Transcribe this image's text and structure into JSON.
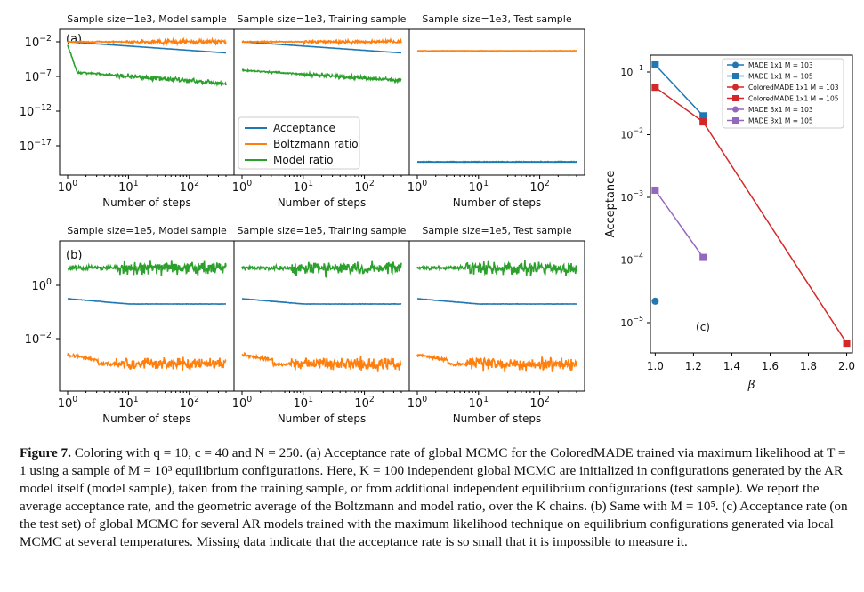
{
  "panels": {
    "top_titles": [
      "Sample size=1e3, Model sample",
      "Sample size=1e3, Training sample",
      "Sample size=1e3, Test sample"
    ],
    "bottom_titles": [
      "Sample size=1e5, Model sample",
      "Sample size=1e5, Training sample",
      "Sample size=1e5, Test sample"
    ],
    "xlabel": "Number of steps",
    "label_a": "(a)",
    "label_b": "(b)",
    "label_c": "(c)"
  },
  "colors": {
    "acceptance": "#1f77b4",
    "boltzmann": "#ff7f0e",
    "model": "#2ca02c",
    "made1": "#1f77b4",
    "colored": "#d62728",
    "made3": "#9467bd"
  },
  "chart_data": [
    {
      "type": "line",
      "title": "Sample size=1e3 (Model / Training / Test sample)",
      "xscale": "log",
      "yscale": "log",
      "xlim": [
        1,
        400
      ],
      "xticks": [
        "10^0",
        "10^1",
        "10^2"
      ],
      "yticks": [
        "10^-2",
        "10^-7",
        "10^-12",
        "10^-17"
      ],
      "legend": [
        "Acceptance",
        "Boltzmann ratio",
        "Model ratio"
      ],
      "legend_position": "lower-left of middle panel",
      "approx_log10_levels": {
        "model_sample": {
          "acceptance": [
            -2,
            -3.5
          ],
          "boltzmann": [
            -2,
            -2
          ],
          "model_ratio": [
            -3,
            -8
          ]
        },
        "training_sample": {
          "acceptance": [
            -2,
            -3.5
          ],
          "boltzmann": [
            -2,
            -2
          ],
          "model_ratio": [
            -5.5,
            -7
          ]
        },
        "test_sample": {
          "acceptance": [
            -19,
            -19
          ],
          "boltzmann": [
            -3.4,
            -3.4
          ],
          "model_ratio": [
            -19,
            -19
          ]
        }
      }
    },
    {
      "type": "line",
      "title": "Sample size=1e5 (Model / Training / Test sample)",
      "xscale": "log",
      "yscale": "log",
      "xlim": [
        1,
        400
      ],
      "xticks": [
        "10^0",
        "10^1",
        "10^2"
      ],
      "yticks": [
        "10^0",
        "10^-2"
      ],
      "approx_log10_levels": {
        "acceptance": [
          -0.5,
          -0.6
        ],
        "boltzmann": [
          -3.2,
          -3.2
        ],
        "model_ratio": [
          0.6,
          0.6
        ]
      }
    },
    {
      "type": "line",
      "title": "",
      "xlabel": "β",
      "ylabel": "Acceptance",
      "yscale": "log",
      "xlim": [
        0.98,
        2.03
      ],
      "ylim": [
        1e-06,
        0.25
      ],
      "xticks": [
        "1.0",
        "1.2",
        "1.4",
        "1.6",
        "1.8",
        "2.0"
      ],
      "yticks": [
        "10^-1",
        "10^-2",
        "10^-3",
        "10^-4",
        "10^-5"
      ],
      "series": [
        {
          "name": "MADE 1x1 M = 10^3",
          "color": "#1f77b4",
          "marker": "circle",
          "x": [
            1.0
          ],
          "y": [
            2.2e-05
          ]
        },
        {
          "name": "MADE 1x1 M = 10^5",
          "color": "#1f77b4",
          "marker": "square",
          "x": [
            1.0,
            1.25
          ],
          "y": [
            0.13,
            0.02
          ]
        },
        {
          "name": "ColoredMADE 1x1 M = 10^3",
          "color": "#d62728",
          "marker": "circle",
          "x": [],
          "y": []
        },
        {
          "name": "ColoredMADE 1x1 M = 10^5",
          "color": "#d62728",
          "marker": "square",
          "x": [
            1.0,
            1.25,
            2.0
          ],
          "y": [
            0.057,
            0.016,
            4.7e-06
          ]
        },
        {
          "name": "MADE 3x1 M = 10^3",
          "color": "#9467bd",
          "marker": "circle",
          "x": [],
          "y": []
        },
        {
          "name": "MADE 3x1 M = 10^5",
          "color": "#9467bd",
          "marker": "square",
          "x": [
            1.0,
            1.25
          ],
          "y": [
            0.0013,
            0.00011
          ]
        }
      ]
    }
  ],
  "caption": {
    "label": "Figure 7.",
    "text": " Coloring with q = 10, c = 40 and N = 250. (a) Acceptance rate of global MCMC for the ColoredMADE trained via maximum likelihood at T = 1 using a sample of M = 10³ equilibrium configurations. Here, K = 100 independent global MCMC are initialized in configurations generated by the AR model itself (model sample), taken from the training sample, or from additional independent equilibrium configurations (test sample). We report the average acceptance rate, and the geometric average of the Boltzmann and model ratio, over the K chains. (b) Same with M = 10⁵. (c) Acceptance rate (on the test set) of global MCMC for several AR models trained with the maximum likelihood technique on equilibrium configurations generated via local MCMC at several temperatures. Missing data indicate that the acceptance rate is so small that it is impossible to measure it."
  }
}
